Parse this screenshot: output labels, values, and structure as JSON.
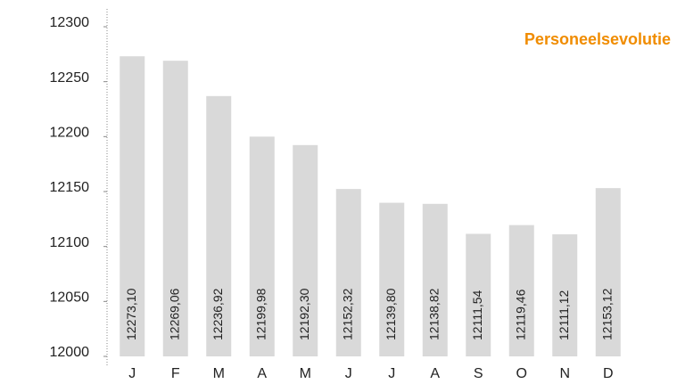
{
  "chart_data": {
    "type": "bar",
    "title": "Personeelsevolutie",
    "categories": [
      "J",
      "F",
      "M",
      "A",
      "M",
      "J",
      "J",
      "A",
      "S",
      "O",
      "N",
      "D"
    ],
    "values": [
      12273.1,
      12269.06,
      12236.92,
      12199.98,
      12192.3,
      12152.32,
      12139.8,
      12138.82,
      12111.54,
      12119.46,
      12111.12,
      12153.12
    ],
    "value_labels": [
      "12273,10",
      "12269,06",
      "12236,92",
      "12199,98",
      "12192,30",
      "12152,32",
      "12139,80",
      "12138,82",
      "12111,54",
      "12119,46",
      "12111,12",
      "12153,12"
    ],
    "color": "#d9d9d9",
    "ylim": [
      12000,
      12300
    ],
    "yticks": [
      12000,
      12050,
      12100,
      12150,
      12200,
      12250,
      12300
    ],
    "grid": false
  }
}
